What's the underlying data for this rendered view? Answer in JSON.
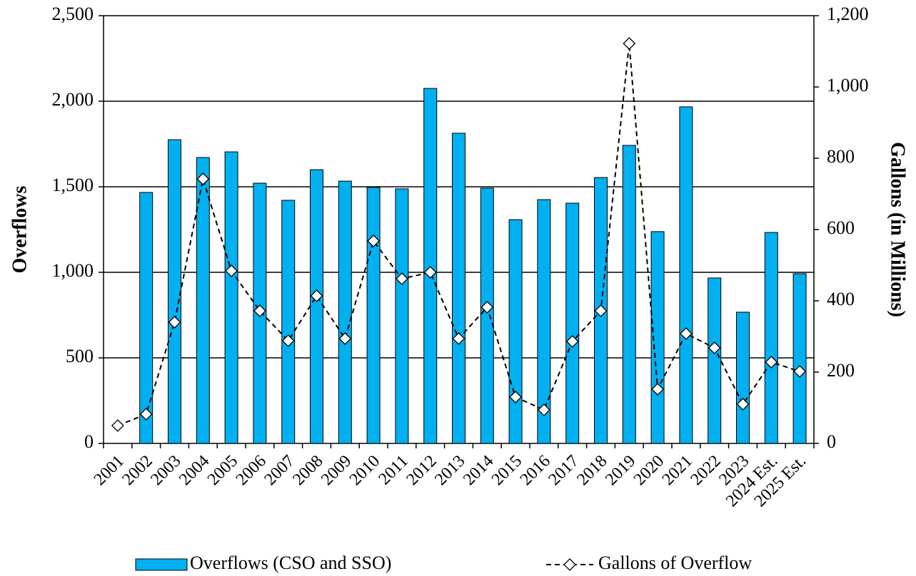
{
  "chart_data": {
    "type": "bar",
    "categories": [
      "2001",
      "2002",
      "2003",
      "2004",
      "2005",
      "2006",
      "2007",
      "2008",
      "2009",
      "2010",
      "2011",
      "2012",
      "2013",
      "2014",
      "2015",
      "2016",
      "2017",
      "2018",
      "2019",
      "2020",
      "2021",
      "2022",
      "2023",
      "2024 Est.",
      "2025 Est."
    ],
    "series": [
      {
        "name": "Overflows (CSO and SSO)",
        "type": "bar",
        "color": "#00b0f0",
        "values": [
          null,
          1467,
          1775,
          1671,
          1704,
          1521,
          1421,
          1600,
          1533,
          1496,
          1488,
          2075,
          1813,
          1492,
          1308,
          1425,
          1404,
          1554,
          1742,
          1238,
          1967,
          967,
          767,
          1233,
          992
        ]
      },
      {
        "name": "Gallons of Overflow",
        "type": "line",
        "axis": "y2",
        "color": "#000000",
        "values": [
          50,
          82,
          340,
          742,
          484,
          372,
          288,
          414,
          294,
          568,
          462,
          480,
          294,
          382,
          130,
          94,
          286,
          372,
          1122,
          152,
          308,
          268,
          110,
          228,
          202
        ]
      }
    ],
    "y_label": "Overflows",
    "y2_label": "Gallons (in Millions)",
    "ylim": [
      0,
      2500
    ],
    "yticks": [
      0,
      500,
      {
        "value": 1000,
        "label": "1,000"
      },
      {
        "value": 1500,
        "label": "1,500"
      },
      {
        "value": 2000,
        "label": "2,000"
      },
      {
        "value": 2500,
        "label": "2,500"
      }
    ],
    "y2lim": [
      0,
      1200
    ],
    "y2ticks": [
      0,
      200,
      400,
      600,
      800,
      {
        "value": 1000,
        "label": "1,000"
      },
      {
        "value": 1200,
        "label": "1,200"
      }
    ],
    "grid": true,
    "legend": "bottom"
  }
}
